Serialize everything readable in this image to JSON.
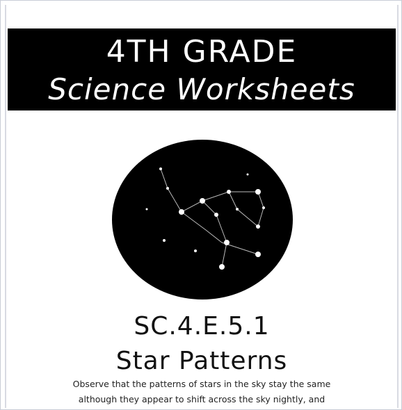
{
  "header": {
    "grade": "4TH GRADE",
    "subject": "Science Worksheets"
  },
  "standard": {
    "code": "SC.4.E.5.1",
    "topic": "Star Patterns",
    "description": [
      "Observe that the patterns of stars in the sky stay the same",
      "although they appear to shift across the sky nightly, and"
    ]
  }
}
